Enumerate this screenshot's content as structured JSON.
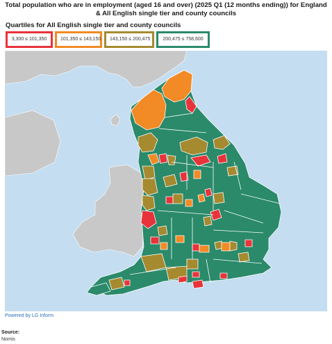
{
  "title": "Total population who are in employment (aged 16 and over) (2025 Q1 (12 months ending)) for England & All English single tier and county councils",
  "legend": {
    "heading": "Quartiles for All English single tier and county councils",
    "items": [
      {
        "label": "3,300 ≤ 101,350",
        "color": "#e8333a"
      },
      {
        "label": "101,350 ≤ 143,150",
        "color": "#f28a25"
      },
      {
        "label": "143,150 ≤ 200,475",
        "color": "#a68a2f"
      },
      {
        "label": "200,475 ≤ 758,600",
        "color": "#2a8a6a"
      }
    ]
  },
  "colors": {
    "sea": "#c4ddf0",
    "land_other": "#c8c8c8",
    "boundary": "#ffffff"
  },
  "footer": {
    "powered_by": "Powered by LG Inform",
    "source_label": "Source:",
    "source_value": "Nomis"
  }
}
